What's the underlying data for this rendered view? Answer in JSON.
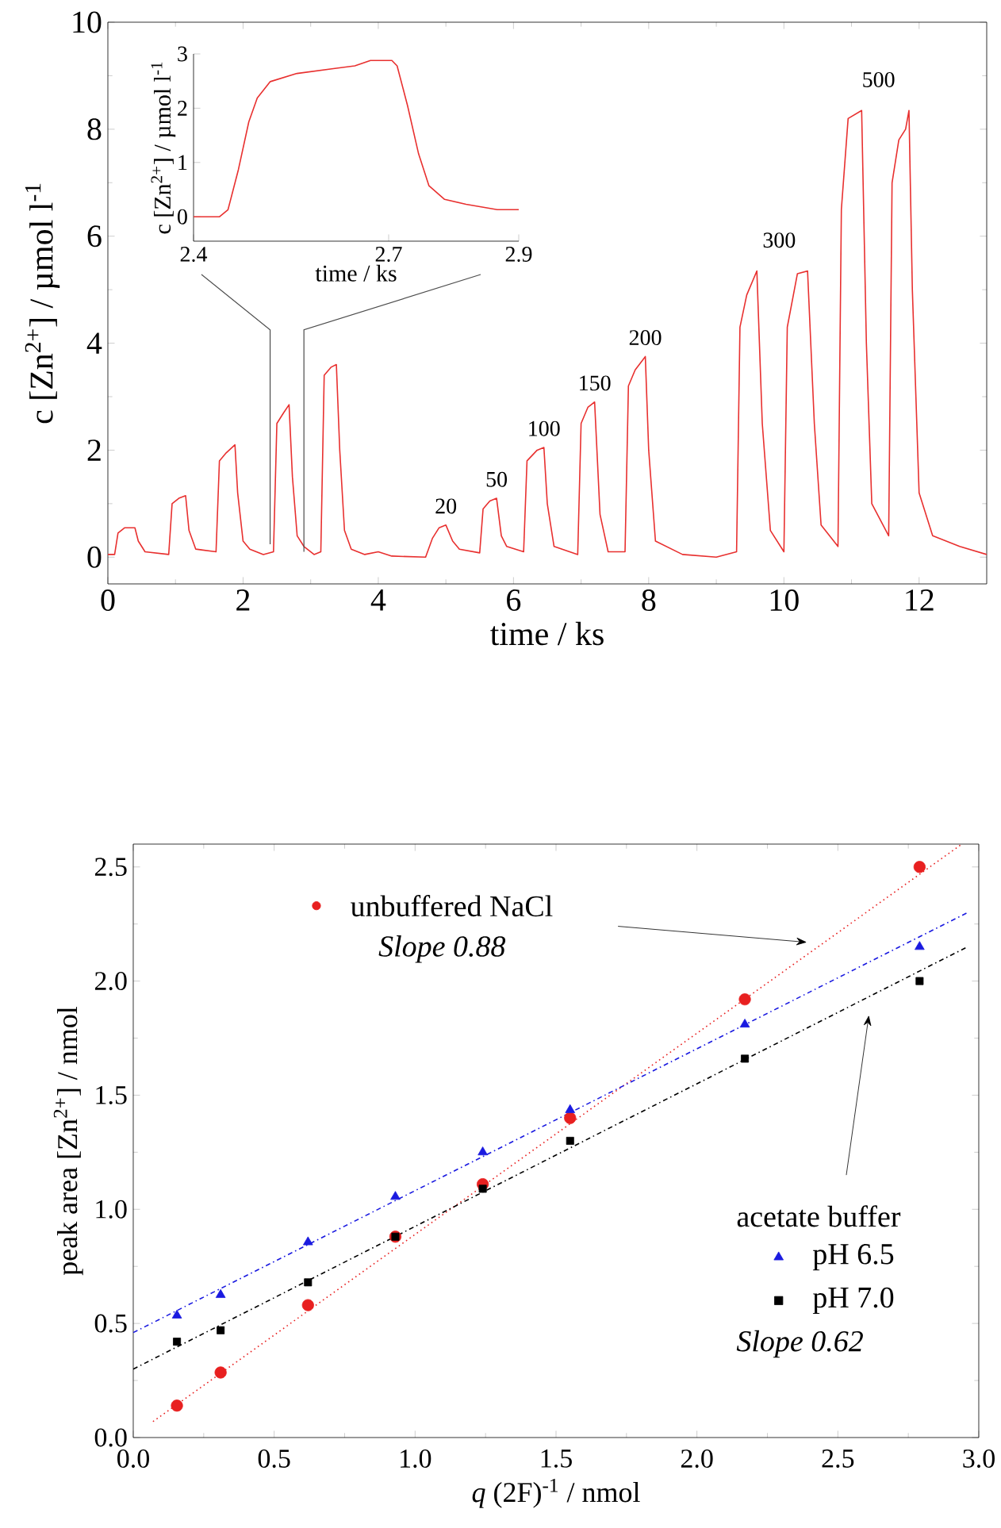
{
  "chart_data": [
    {
      "type": "line",
      "xlabel": "time / ks",
      "ylabel": "c [Zn$^{2+}$] / µmol l$^{-1}$",
      "color": "#e8302f",
      "xlim": [
        0,
        13
      ],
      "ylim": [
        -0.5,
        10
      ],
      "xticks": [
        0,
        2,
        4,
        6,
        8,
        10,
        12
      ],
      "yticks": [
        0,
        2,
        4,
        6,
        8,
        10
      ],
      "x": [
        0,
        0.1,
        0.15,
        0.25,
        0.4,
        0.45,
        0.55,
        0.9,
        0.95,
        1.05,
        1.15,
        1.2,
        1.3,
        1.6,
        1.65,
        1.75,
        1.88,
        1.92,
        2.0,
        2.1,
        2.3,
        2.45,
        2.5,
        2.6,
        2.68,
        2.73,
        2.8,
        2.9,
        3.05,
        3.15,
        3.2,
        3.3,
        3.38,
        3.43,
        3.5,
        3.6,
        3.8,
        4.0,
        4.2,
        4.7,
        4.8,
        4.9,
        5.0,
        5.1,
        5.2,
        5.5,
        5.55,
        5.65,
        5.75,
        5.82,
        5.9,
        6.15,
        6.2,
        6.35,
        6.45,
        6.5,
        6.6,
        6.95,
        7.0,
        7.1,
        7.2,
        7.28,
        7.4,
        7.65,
        7.7,
        7.8,
        7.95,
        8.0,
        8.1,
        8.5,
        9.0,
        9.3,
        9.35,
        9.45,
        9.6,
        9.68,
        9.8,
        10.0,
        10.05,
        10.2,
        10.35,
        10.45,
        10.55,
        10.8,
        10.85,
        10.95,
        11.15,
        11.22,
        11.3,
        11.55,
        11.6,
        11.7,
        11.8,
        11.85,
        11.9,
        12.0,
        12.2,
        12.6,
        13
      ],
      "values": [
        0.05,
        0.05,
        0.45,
        0.55,
        0.55,
        0.3,
        0.1,
        0.05,
        1.0,
        1.1,
        1.15,
        0.5,
        0.15,
        0.1,
        1.8,
        1.95,
        2.1,
        1.2,
        0.3,
        0.15,
        0.05,
        0.1,
        2.5,
        2.7,
        2.85,
        1.5,
        0.4,
        0.2,
        0.05,
        0.1,
        3.4,
        3.55,
        3.6,
        2.0,
        0.5,
        0.15,
        0.05,
        0.1,
        0.02,
        0.0,
        0.35,
        0.55,
        0.6,
        0.3,
        0.15,
        0.08,
        0.9,
        1.05,
        1.1,
        0.4,
        0.2,
        0.1,
        1.8,
        2.0,
        2.05,
        1.0,
        0.2,
        0.05,
        2.5,
        2.8,
        2.9,
        0.8,
        0.1,
        0.1,
        3.2,
        3.5,
        3.75,
        2.0,
        0.3,
        0.05,
        0.0,
        0.1,
        4.3,
        4.9,
        5.35,
        2.5,
        0.5,
        0.1,
        4.3,
        5.3,
        5.35,
        2.5,
        0.6,
        0.2,
        6.5,
        8.2,
        8.35,
        4.0,
        1.0,
        0.4,
        7.0,
        7.8,
        8.0,
        8.35,
        5.0,
        1.2,
        0.4,
        0.2,
        0.05
      ],
      "annotations": [
        {
          "text": "20",
          "x": 5.0,
          "y": 0.6
        },
        {
          "text": "50",
          "x": 5.75,
          "y": 1.1
        },
        {
          "text": "100",
          "x": 6.45,
          "y": 2.05
        },
        {
          "text": "150",
          "x": 7.2,
          "y": 2.9
        },
        {
          "text": "200",
          "x": 7.95,
          "y": 3.75
        },
        "300",
        "500"
      ]
    },
    {
      "type": "line",
      "xlabel": "time / ks",
      "ylabel": "c [Zn$^{2+}$] / µmol l$^{-1}$",
      "color": "#e8302f",
      "xlim": [
        2.4,
        2.9
      ],
      "ylim": [
        -0.45,
        3
      ],
      "xticks": [
        2.4,
        2.7,
        2.9
      ],
      "yticks": [
        0,
        1,
        2,
        3
      ],
      "x": [
        2.4,
        2.44,
        2.453,
        2.469,
        2.485,
        2.498,
        2.518,
        2.559,
        2.615,
        2.648,
        2.672,
        2.705,
        2.713,
        2.729,
        2.746,
        2.762,
        2.786,
        2.819,
        2.867,
        2.9
      ],
      "values": [
        0,
        0,
        0.13,
        0.87,
        1.75,
        2.19,
        2.49,
        2.64,
        2.73,
        2.78,
        2.88,
        2.88,
        2.78,
        2.05,
        1.16,
        0.57,
        0.32,
        0.23,
        0.13,
        0.13
      ]
    },
    {
      "type": "scatter",
      "xlabel": "*q* (2F)$^{-1}$ / nmol",
      "ylabel": "peak area [Zn$^{2+}$] / nmol",
      "xlim": [
        0,
        3
      ],
      "ylim": [
        0,
        2.6
      ],
      "xticks": [
        {
          "value": 0,
          "label": "0.0"
        },
        {
          "value": 0.5,
          "label": "0.5"
        },
        {
          "value": 1,
          "label": "1.0"
        },
        {
          "value": 1.5,
          "label": "1.5"
        },
        {
          "value": 2,
          "label": "2.0"
        },
        {
          "value": 2.5,
          "label": "2.5"
        },
        {
          "value": 3,
          "label": "3.0"
        }
      ],
      "yticks": [
        {
          "value": 0,
          "label": "0.0"
        },
        {
          "value": 0.5,
          "label": "0.5"
        },
        {
          "value": 1,
          "label": "1.0"
        },
        {
          "value": 1.5,
          "label": "1.5"
        },
        {
          "value": 2,
          "label": "2.0"
        },
        {
          "value": 2.5,
          "label": "2.5"
        }
      ],
      "legend": "right",
      "series": [
        {
          "name": "unbuffered NaCl",
          "color": "#e82020",
          "marker": "circle",
          "x": [
            0.155,
            0.31,
            0.62,
            0.93,
            1.24,
            1.55,
            2.17,
            2.79
          ],
          "values": [
            0.14,
            0.285,
            0.58,
            0.88,
            1.11,
            1.4,
            1.92,
            2.5
          ]
        },
        {
          "name": "pH 6.5",
          "color": "#1a1ae0",
          "marker": "triangle",
          "x": [
            0.155,
            0.31,
            0.62,
            0.93,
            1.24,
            1.55,
            2.17,
            2.79
          ],
          "values": [
            0.535,
            0.625,
            0.856,
            1.055,
            1.25,
            1.435,
            1.81,
            2.15
          ]
        },
        {
          "name": "pH 7.0",
          "color": "#000000",
          "marker": "square",
          "x": [
            0.155,
            0.31,
            0.62,
            0.93,
            1.24,
            1.55,
            2.17,
            2.79
          ],
          "values": [
            0.42,
            0.47,
            0.68,
            0.88,
            1.09,
            1.3,
            1.66,
            2.0
          ]
        },
        {
          "type": "line",
          "color": "#e82020",
          "line_style": "dotted",
          "x": [
            0.07,
            2.94
          ],
          "values": [
            0.07,
            2.6
          ]
        },
        {
          "type": "line",
          "color": "#1a1ae0",
          "line_style": "dashdotted",
          "x": [
            0,
            2.96
          ],
          "values": [
            0.46,
            2.3
          ]
        },
        {
          "type": "line",
          "color": "#000000",
          "line_style": "dashdotted",
          "x": [
            0,
            2.96
          ],
          "values": [
            0.3,
            2.15
          ]
        }
      ],
      "annotations": [
        "Slope 0.88",
        "acetate buffer",
        "Slope 0.62"
      ]
    }
  ]
}
